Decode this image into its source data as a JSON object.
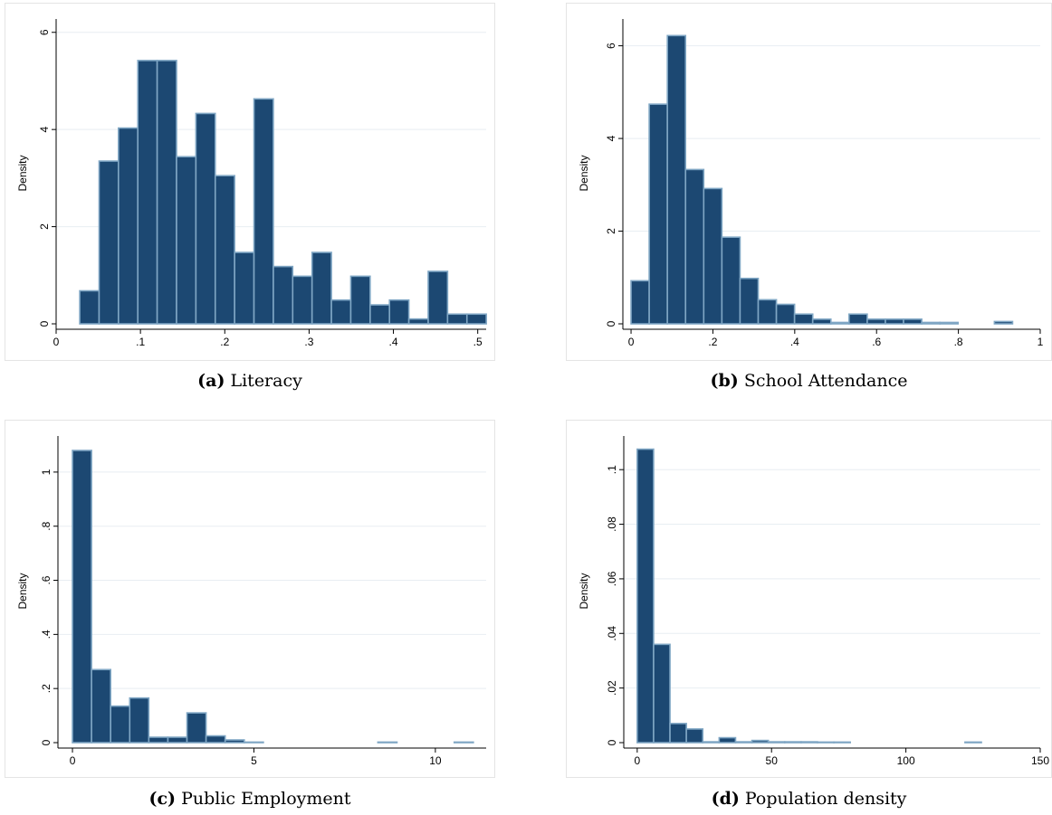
{
  "chart_data": [
    {
      "type": "bar",
      "caption_label": "(a)",
      "caption_text": "Literacy",
      "ylabel": "Density",
      "xlabel": "",
      "xlim": [
        0,
        0.51
      ],
      "ylim": [
        0,
        6.2
      ],
      "xticks": [
        0,
        0.1,
        0.2,
        0.3,
        0.4,
        0.5
      ],
      "xtick_labels": [
        "0",
        ".1",
        ".2",
        ".3",
        ".4",
        ".5"
      ],
      "yticks": [
        0,
        2,
        4,
        6
      ],
      "ytick_labels": [
        "0",
        "2",
        "4",
        "6"
      ],
      "grid": true,
      "bin_start": 0.028,
      "bin_width": 0.02296,
      "values": [
        0.68,
        3.35,
        4.03,
        5.42,
        5.42,
        3.44,
        4.33,
        3.05,
        1.47,
        4.63,
        1.18,
        0.98,
        1.47,
        0.49,
        0.98,
        0.39,
        0.49,
        0.1,
        1.08,
        0.2,
        0.2
      ]
    },
    {
      "type": "bar",
      "caption_label": "(b)",
      "caption_text": "School Attendance",
      "ylabel": "Density",
      "xlabel": "",
      "xlim": [
        -0.02,
        1.0
      ],
      "ylim": [
        0,
        6.5
      ],
      "xticks": [
        0,
        0.2,
        0.4,
        0.6,
        0.8,
        1.0
      ],
      "xtick_labels": [
        "0",
        ".2",
        ".4",
        ".6",
        ".8",
        "1"
      ],
      "yticks": [
        0,
        2,
        4,
        6
      ],
      "ytick_labels": [
        "0",
        "2",
        "4",
        "6"
      ],
      "grid": true,
      "bin_start": 0.0,
      "bin_width": 0.0444,
      "values": [
        0.93,
        4.74,
        6.22,
        3.33,
        2.92,
        1.87,
        0.98,
        0.52,
        0.42,
        0.21,
        0.1,
        0.03,
        0.21,
        0.1,
        0.1,
        0.1,
        0.03,
        0.03,
        0.0,
        0.0,
        0.05
      ]
    },
    {
      "type": "bar",
      "caption_label": "(c)",
      "caption_text": "Public Employment",
      "ylabel": "Density",
      "xlabel": "",
      "xlim": [
        -0.4,
        11.4
      ],
      "ylim": [
        0,
        1.12
      ],
      "xticks": [
        0,
        5,
        10
      ],
      "xtick_labels": [
        "0",
        "5",
        "10"
      ],
      "yticks": [
        0,
        0.2,
        0.4,
        0.6,
        0.8,
        1.0
      ],
      "ytick_labels": [
        "0",
        ".2",
        ".4",
        ".6",
        ".8",
        "1"
      ],
      "grid": true,
      "bin_start": 0.0,
      "bin_width": 0.526,
      "values": [
        1.08,
        0.27,
        0.135,
        0.165,
        0.02,
        0.02,
        0.11,
        0.025,
        0.01,
        0.002,
        0.0,
        0.0,
        0.0,
        0.0,
        0.0,
        0.0,
        0.002,
        0.0,
        0.0,
        0.0,
        0.002
      ]
    },
    {
      "type": "bar",
      "caption_label": "(d)",
      "caption_text": "Population density",
      "ylabel": "Density",
      "xlabel": "",
      "xlim": [
        -5,
        150
      ],
      "ylim": [
        0,
        0.111
      ],
      "xticks": [
        0,
        50,
        100,
        150
      ],
      "xtick_labels": [
        "0",
        "50",
        "100",
        "150"
      ],
      "yticks": [
        0,
        0.02,
        0.04,
        0.06,
        0.08,
        0.1
      ],
      "ytick_labels": [
        "0",
        ".02",
        ".04",
        ".06",
        ".08",
        ".1"
      ],
      "grid": true,
      "bin_start": 0.0,
      "bin_width": 6.1,
      "values": [
        0.1075,
        0.036,
        0.007,
        0.005,
        0.0003,
        0.0018,
        0.0003,
        0.0008,
        0.0003,
        0.0003,
        0.0003,
        0.0002,
        0.0002,
        0.0,
        0.0,
        0.0,
        0.0,
        0.0,
        0.0,
        0.0,
        0.0002
      ]
    }
  ],
  "colors": {
    "bar_fill": "#1c4872",
    "bar_edge": "#7fa6c4",
    "grid": "#e8eef2",
    "axis": "#000000",
    "frame": "#e4e4e4"
  }
}
